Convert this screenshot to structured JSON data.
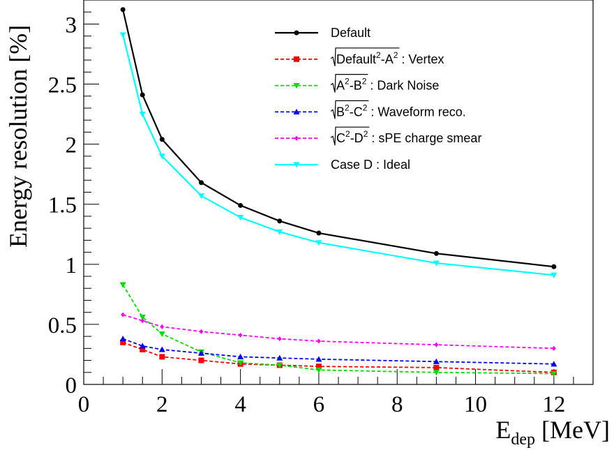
{
  "chart_data": {
    "type": "line",
    "ylabel": "Energy resolution [%]",
    "xlabel": {
      "base": "E",
      "sub": "dep",
      "unit": " [MeV]"
    },
    "xlim": [
      0,
      13
    ],
    "ylim": [
      0,
      3.2
    ],
    "x_ticks": [
      0,
      2,
      4,
      6,
      8,
      10,
      12
    ],
    "y_ticks": [
      0,
      0.5,
      1,
      1.5,
      2,
      2.5,
      3
    ],
    "x_tick_labels": [
      "0",
      "2",
      "4",
      "6",
      "8",
      "10",
      "12"
    ],
    "y_tick_labels": [
      "0",
      "0.5",
      "1",
      "1.5",
      "2",
      "2.5",
      "3"
    ],
    "grid": false,
    "legend_position": "top-right",
    "x": [
      1,
      1.5,
      2,
      3,
      4,
      5,
      6,
      9,
      12
    ],
    "series": [
      {
        "name": "Default",
        "legend_parts": [
          {
            "t": "Default"
          }
        ],
        "color": "#000000",
        "dash": "solid",
        "marker": "circle",
        "values": [
          3.12,
          2.41,
          2.04,
          1.68,
          1.49,
          1.36,
          1.26,
          1.09,
          0.98
        ]
      },
      {
        "name": "√(Default²-A²) : Vertex",
        "legend_parts": [
          {
            "t": "Default",
            "ov": true
          },
          {
            "t": "2",
            "sup": true,
            "ov": true
          },
          {
            "t": "-A",
            "ov": true
          },
          {
            "t": "2",
            "sup": true,
            "ov": true
          },
          {
            "t": " : Vertex"
          }
        ],
        "color": "#ff0000",
        "dash": "dashed",
        "marker": "square",
        "values": [
          0.35,
          0.29,
          0.23,
          0.2,
          0.17,
          0.16,
          0.15,
          0.14,
          0.1
        ]
      },
      {
        "name": "√(A²-B²) : Dark Noise",
        "legend_parts": [
          {
            "t": "A",
            "ov": true
          },
          {
            "t": "2",
            "sup": true,
            "ov": true
          },
          {
            "t": "-B",
            "ov": true
          },
          {
            "t": "2",
            "sup": true,
            "ov": true
          },
          {
            "t": " : Dark Noise"
          }
        ],
        "color": "#00dd00",
        "dash": "dashed",
        "marker": "triangle-down",
        "values": [
          0.83,
          0.56,
          0.42,
          0.27,
          0.18,
          0.16,
          0.12,
          0.1,
          0.09
        ]
      },
      {
        "name": "√(B²-C²) : Waveform reco.",
        "legend_parts": [
          {
            "t": "B",
            "ov": true
          },
          {
            "t": "2",
            "sup": true,
            "ov": true
          },
          {
            "t": "-C",
            "ov": true
          },
          {
            "t": "2",
            "sup": true,
            "ov": true
          },
          {
            "t": " : Waveform reco."
          }
        ],
        "color": "#0000ff",
        "dash": "dashed",
        "marker": "triangle-up",
        "values": [
          0.38,
          0.32,
          0.29,
          0.26,
          0.23,
          0.22,
          0.21,
          0.19,
          0.17
        ]
      },
      {
        "name": "√(C²-D²) : sPE charge smear",
        "legend_parts": [
          {
            "t": "C",
            "ov": true
          },
          {
            "t": "2",
            "sup": true,
            "ov": true
          },
          {
            "t": "-D",
            "ov": true
          },
          {
            "t": "2",
            "sup": true,
            "ov": true
          },
          {
            "t": " : sPE charge smear"
          }
        ],
        "color": "#ff00ff",
        "dash": "dashed",
        "marker": "diamond",
        "values": [
          0.58,
          0.53,
          0.48,
          0.44,
          0.41,
          0.38,
          0.36,
          0.33,
          0.3
        ]
      },
      {
        "name": "Case D : Ideal",
        "legend_parts": [
          {
            "t": "Case D : Ideal"
          }
        ],
        "color": "#00ffff",
        "dash": "solid",
        "marker": "triangle-down",
        "values": [
          2.91,
          2.25,
          1.9,
          1.57,
          1.39,
          1.27,
          1.18,
          1.01,
          0.91
        ]
      }
    ]
  }
}
